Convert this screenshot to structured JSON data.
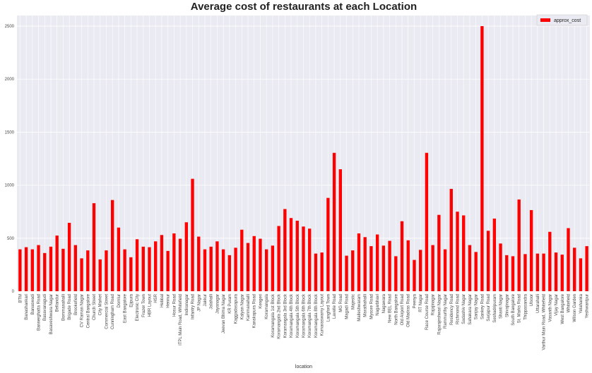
{
  "chart_data": {
    "type": "bar",
    "title": "Average cost of restaurants at each Location",
    "xlabel": "location",
    "ylabel": "",
    "ylim": [
      0,
      2600
    ],
    "yticks": [
      0,
      500,
      1000,
      1500,
      2000,
      2500
    ],
    "grid": true,
    "legend_position": "top-right",
    "bar_color": "#ff0000",
    "background_color": "#eaeaf2",
    "series": [
      {
        "name": "approx_cost",
        "values": [
          395,
          415,
          395,
          435,
          360,
          420,
          525,
          400,
          645,
          435,
          310,
          385,
          830,
          300,
          385,
          860,
          600,
          395,
          320,
          490,
          420,
          415,
          470,
          530,
          380,
          545,
          495,
          650,
          1060,
          515,
          395,
          420,
          470,
          395,
          340,
          410,
          580,
          455,
          520,
          495,
          395,
          430,
          615,
          775,
          690,
          665,
          610,
          590,
          355,
          365,
          880,
          1305,
          1150,
          335,
          385,
          545,
          510,
          425,
          535,
          430,
          475,
          330,
          660,
          480,
          295,
          390,
          1305,
          435,
          720,
          395,
          965,
          750,
          715,
          435,
          370,
          2500,
          570,
          685,
          450,
          340,
          330,
          865,
          350,
          765,
          355,
          355,
          560,
          365,
          345,
          595,
          410,
          310,
          425
        ]
      }
    ],
    "categories": [
      "BTM",
      "Banashankari",
      "Banaswadi",
      "Bannerghatta Road",
      "Basavanagudi",
      "Basaveshwara Nagar",
      "Bellandur",
      "Bommanahalli",
      "Brigade Road",
      "Brookefield",
      "CV Raman Nagar",
      "Central Bangalore",
      "Church Street",
      "City Market",
      "Commercial Street",
      "Cunningham Road",
      "Domlur",
      "East Bangalore",
      "Ejipura",
      "Electronic City",
      "Frazer Town",
      "HBR Layout",
      "HSR",
      "Hebbal",
      "Hennur",
      "Hosur Road",
      "ITPL Main Road, Whitefield",
      "Indiranagar",
      "Infantry Road",
      "JP Nagar",
      "Jakkur",
      "Jalahalli",
      "Jayanagar",
      "Jeevan Bhima Nagar",
      "KR Puram",
      "Kaggadasapura",
      "Kalyan Nagar",
      "Kammanahalli",
      "Kanakapura Road",
      "Kengeri",
      "Koramangala",
      "Koramangala 1st Block",
      "Koramangala 2nd Block",
      "Koramangala 3rd Block",
      "Koramangala 4th Block",
      "Koramangala 5th Block",
      "Koramangala 6th Block",
      "Koramangala 7th Block",
      "Koramangala 8th Block",
      "Kumaraswamy Layout",
      "Langford Town",
      "Lavelle Road",
      "MG Road",
      "Magadi Road",
      "Majestic",
      "Malleshwaram",
      "Marathahalli",
      "Mysore Road",
      "Nagarbhavi",
      "Nagawara",
      "New BEL Road",
      "North Bangalore",
      "Old Airport Road",
      "Old Madras Road",
      "Peenya",
      "RT Nagar",
      "Race Course Road",
      "Rajajinagar",
      "Rajarajeshwari Nagar",
      "Rammurthy Nagar",
      "Residency Road",
      "Richmond Road",
      "Sadashiv Nagar",
      "Sahakara Nagar",
      "Sanjay Nagar",
      "Sankey Road",
      "Sarjapur Road",
      "Seshadripuram",
      "Shanti Nagar",
      "Shivajinagar",
      "South Bangalore",
      "St. Marks Road",
      "Thippasandra",
      "Ulsoor",
      "Uttarahalli",
      "Varthur Main Road, Whitefield",
      "Vasanth Nagar",
      "Vijay Nagar",
      "West Bangalore",
      "Whitefield",
      "Wilson Garden",
      "Yelahanka",
      "Yeshwantpur"
    ]
  }
}
